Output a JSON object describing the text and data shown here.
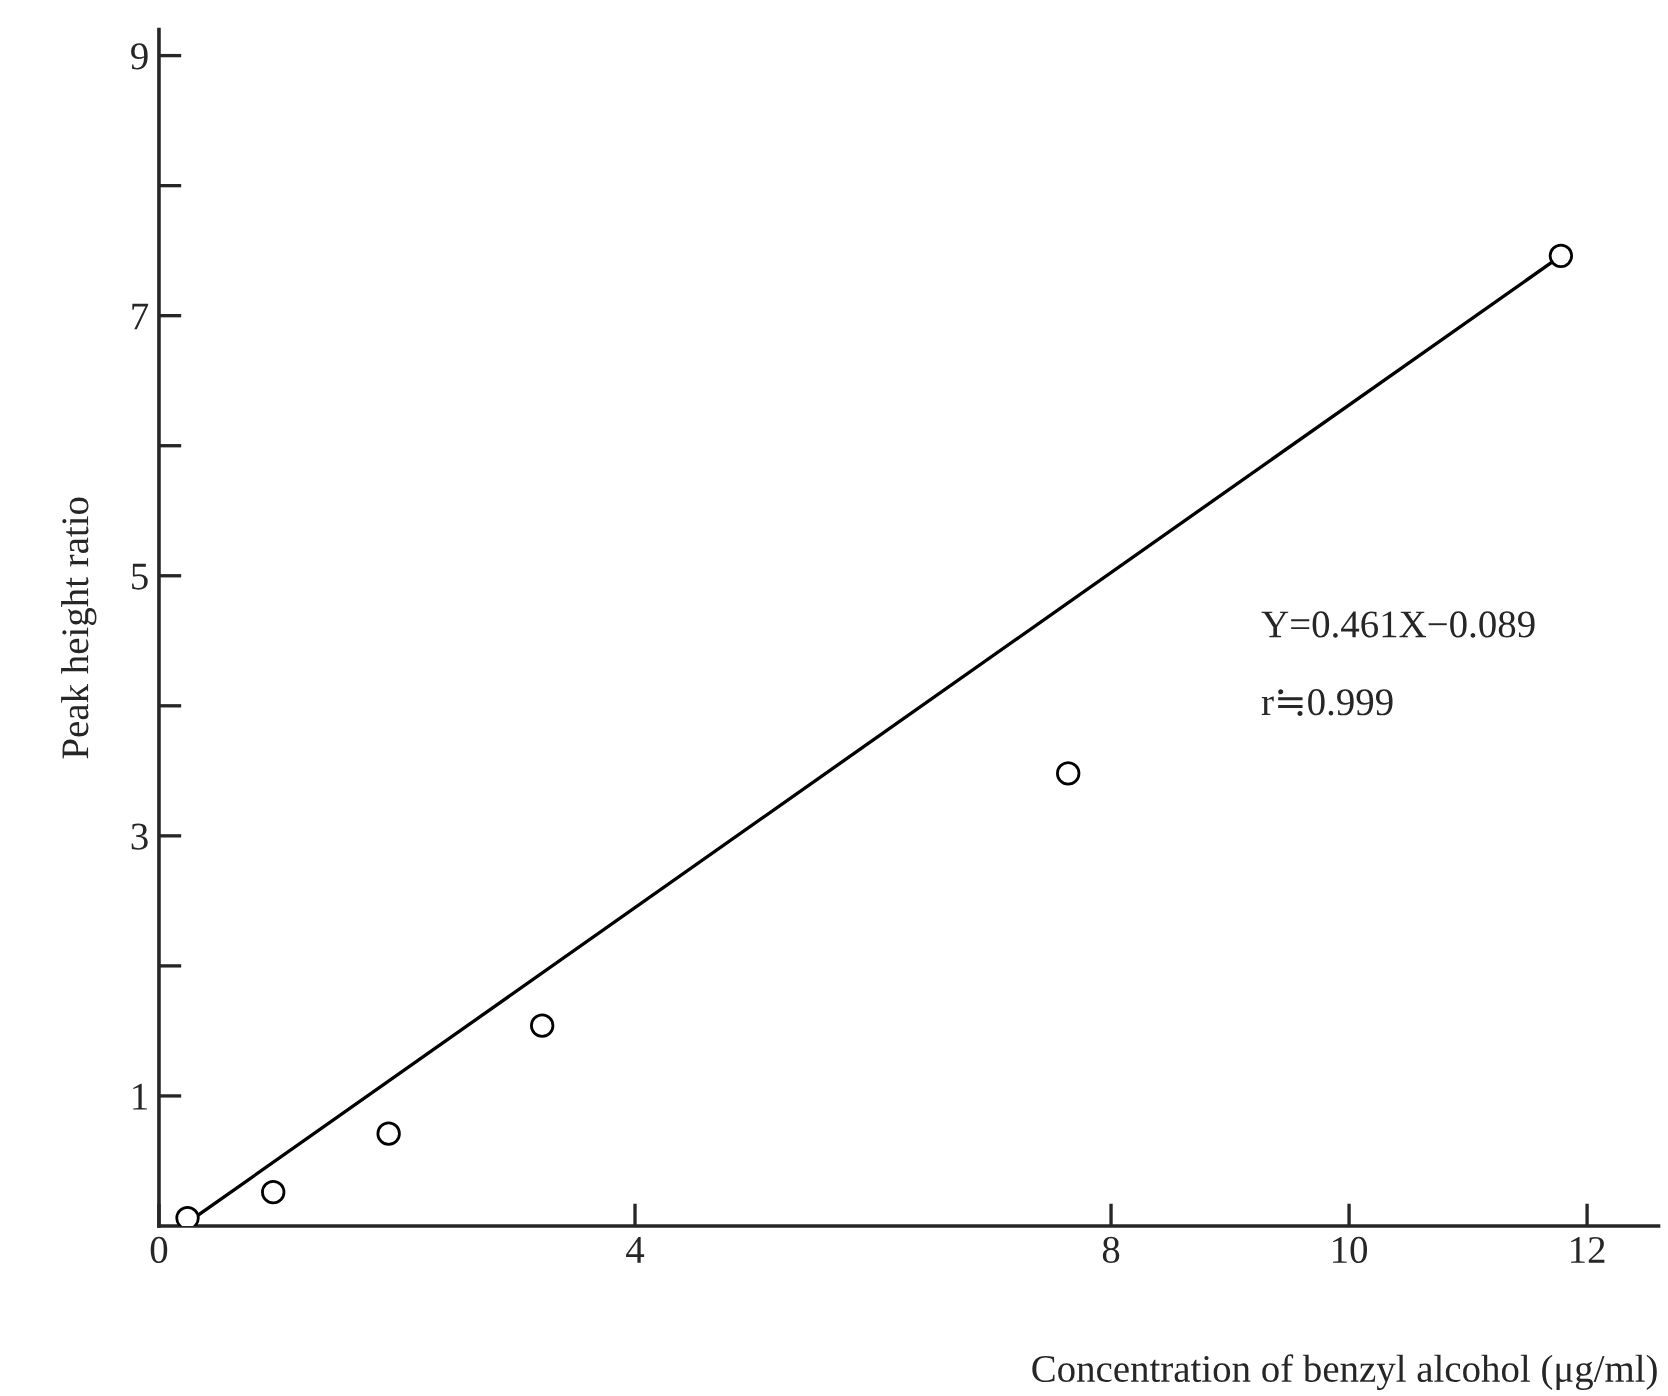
{
  "chart_data": {
    "type": "scatter",
    "xlabel": "Concentration of benzyl alcohol (μg/ml)",
    "ylabel": "Peak height ratio",
    "series": [
      {
        "color": "#000000",
        "marker": "circle",
        "x": [
          0.24,
          0.96,
          1.93,
          3.22,
          7.64,
          11.78
        ],
        "values": [
          0.06,
          0.26,
          0.71,
          1.54,
          3.48,
          7.46
        ]
      },
      {
        "type": "line",
        "color": "#000000",
        "x": [
          0.2,
          11.78
        ],
        "values": [
          0.0,
          7.46
        ]
      }
    ],
    "xlim": [
      0,
      12.6
    ],
    "ylim": [
      0,
      9.2
    ],
    "xticks": [
      0,
      4,
      8,
      10,
      12
    ],
    "yticks": [
      1,
      {
        "value": 2,
        "label": null
      },
      3,
      {
        "value": 4,
        "label": null
      },
      5,
      {
        "value": 6,
        "label": null
      },
      7,
      {
        "value": 8,
        "label": null
      },
      9
    ],
    "annotations": [
      "Y=0.461X−0.089",
      "r≒0.999"
    ],
    "grid": false,
    "legend": false
  }
}
